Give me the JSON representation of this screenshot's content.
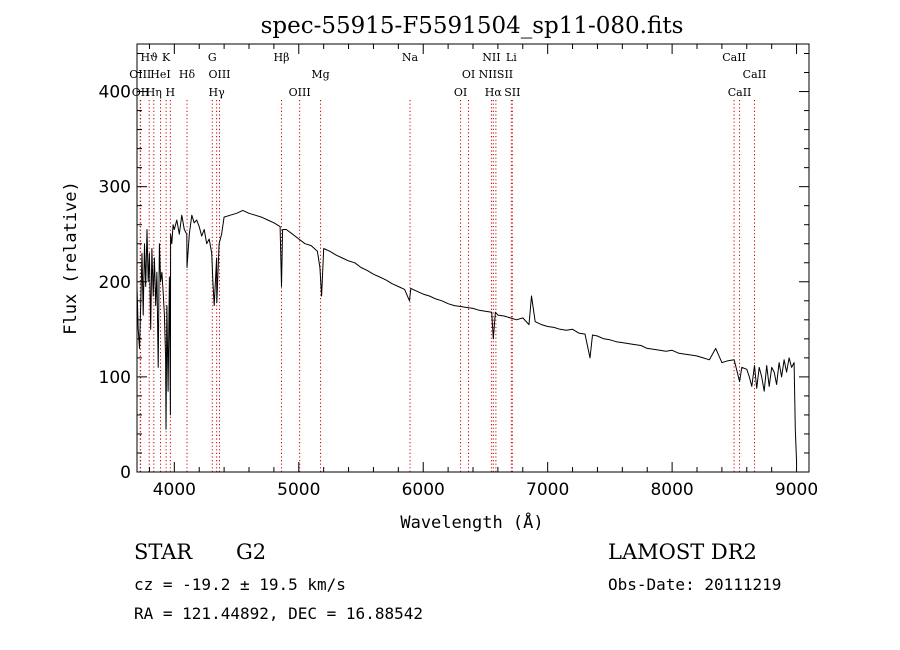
{
  "chart_data": {
    "type": "line",
    "title": "spec-55915-F5591504_sp11-080.fits",
    "xlabel": "Wavelength (Å)",
    "ylabel": "Flux (relative)",
    "xlim": [
      3700,
      9100
    ],
    "ylim": [
      0,
      450
    ],
    "xticks": [
      4000,
      5000,
      6000,
      7000,
      8000,
      9000
    ],
    "yticks": [
      0,
      100,
      200,
      300,
      400
    ],
    "grid": false,
    "legend": "none",
    "line_color": "#000000",
    "marker_color": "#cc0000",
    "series": [
      {
        "x": [
          3700,
          3710,
          3720,
          3730,
          3740,
          3750,
          3760,
          3770,
          3780,
          3790,
          3800,
          3810,
          3820,
          3830,
          3840,
          3850,
          3860,
          3870,
          3880,
          3890,
          3900,
          3910,
          3920,
          3930,
          3933,
          3940,
          3950,
          3960,
          3968,
          3970,
          3980,
          3990,
          4000,
          4020,
          4040,
          4060,
          4080,
          4100,
          4102,
          4120,
          4140,
          4160,
          4180,
          4200,
          4220,
          4240,
          4260,
          4280,
          4300,
          4310,
          4320,
          4340,
          4341,
          4360,
          4380,
          4400,
          4450,
          4500,
          4550,
          4600,
          4650,
          4700,
          4750,
          4800,
          4850,
          4861,
          4870,
          4900,
          4950,
          5000,
          5050,
          5100,
          5150,
          5170,
          5183,
          5200,
          5250,
          5300,
          5350,
          5400,
          5450,
          5500,
          5550,
          5600,
          5650,
          5700,
          5750,
          5800,
          5850,
          5890,
          5900,
          5950,
          6000,
          6050,
          6100,
          6150,
          6200,
          6250,
          6300,
          6350,
          6400,
          6450,
          6500,
          6550,
          6563,
          6580,
          6600,
          6650,
          6700,
          6750,
          6800,
          6850,
          6870,
          6900,
          6950,
          7000,
          7050,
          7100,
          7150,
          7200,
          7250,
          7300,
          7340,
          7360,
          7400,
          7450,
          7500,
          7550,
          7600,
          7650,
          7700,
          7750,
          7800,
          7850,
          7900,
          7950,
          8000,
          8050,
          8100,
          8150,
          8200,
          8250,
          8300,
          8350,
          8400,
          8450,
          8498,
          8510,
          8542,
          8560,
          8600,
          8620,
          8640,
          8662,
          8680,
          8700,
          8720,
          8740,
          8760,
          8780,
          8800,
          8820,
          8840,
          8860,
          8880,
          8900,
          8920,
          8940,
          8960,
          8980,
          8990,
          9000
        ],
        "y": [
          195,
          150,
          130,
          175,
          230,
          165,
          240,
          195,
          255,
          200,
          230,
          150,
          235,
          185,
          225,
          175,
          210,
          110,
          240,
          200,
          210,
          190,
          165,
          120,
          45,
          175,
          85,
          205,
          60,
          250,
          240,
          260,
          255,
          265,
          250,
          270,
          255,
          250,
          215,
          250,
          270,
          262,
          265,
          258,
          248,
          255,
          240,
          245,
          230,
          200,
          175,
          225,
          178,
          240,
          250,
          268,
          270,
          272,
          275,
          272,
          270,
          268,
          265,
          262,
          258,
          195,
          255,
          255,
          250,
          245,
          240,
          238,
          232,
          215,
          185,
          235,
          232,
          228,
          225,
          222,
          220,
          215,
          212,
          208,
          205,
          202,
          198,
          195,
          192,
          180,
          193,
          190,
          187,
          185,
          182,
          180,
          177,
          175,
          174,
          173,
          172,
          170,
          169,
          168,
          140,
          168,
          165,
          164,
          162,
          160,
          162,
          155,
          185,
          158,
          155,
          153,
          152,
          150,
          149,
          150,
          146,
          145,
          120,
          144,
          143,
          140,
          139,
          137,
          136,
          135,
          134,
          133,
          130,
          129,
          128,
          127,
          128,
          125,
          124,
          123,
          122,
          120,
          118,
          130,
          115,
          117,
          118,
          112,
          95,
          110,
          108,
          100,
          90,
          112,
          88,
          110,
          100,
          85,
          112,
          90,
          110,
          105,
          92,
          115,
          100,
          118,
          105,
          120,
          110,
          115,
          45,
          10
        ]
      }
    ],
    "line_markers": [
      {
        "label": "Hϑ",
        "x": 3798,
        "row": 1
      },
      {
        "label": "OIII",
        "x": 3726,
        "row": 2
      },
      {
        "label": "OII",
        "x": 3729,
        "row": 3
      },
      {
        "label": "Hη",
        "x": 3835,
        "row": 3
      },
      {
        "label": "HeI",
        "x": 3889,
        "row": 2
      },
      {
        "label": "K",
        "x": 3934,
        "row": 1
      },
      {
        "label": "H",
        "x": 3968,
        "row": 3
      },
      {
        "label": "Hδ",
        "x": 4102,
        "row": 2
      },
      {
        "label": "G",
        "x": 4305,
        "row": 1
      },
      {
        "label": "OIII",
        "x": 4363,
        "row": 2
      },
      {
        "label": "Hγ",
        "x": 4340,
        "row": 3
      },
      {
        "label": "Hβ",
        "x": 4861,
        "row": 1
      },
      {
        "label": "OIII",
        "x": 5007,
        "row": 3
      },
      {
        "label": "Mg",
        "x": 5175,
        "row": 2
      },
      {
        "label": "Na",
        "x": 5894,
        "row": 1
      },
      {
        "label": "OI",
        "x": 6300,
        "row": 3
      },
      {
        "label": "OI",
        "x": 6364,
        "row": 2
      },
      {
        "label": "NII",
        "x": 6548,
        "row": 1
      },
      {
        "label": "NIISII",
        "x": 6584,
        "row": 2
      },
      {
        "label": "Hα",
        "x": 6563,
        "row": 3
      },
      {
        "label": "SII",
        "x": 6716,
        "row": 3
      },
      {
        "label": "Li",
        "x": 6708,
        "row": 1
      },
      {
        "label": "CaII",
        "x": 8498,
        "row": 1
      },
      {
        "label": "CaII",
        "x": 8662,
        "row": 2
      },
      {
        "label": "CaII",
        "x": 8542,
        "row": 3
      }
    ]
  },
  "info": {
    "object_class": "STAR",
    "subclass": "G2",
    "release": "LAMOST DR2",
    "redshift": "cz = -19.2 ± 19.5 km/s",
    "obs_date": "Obs-Date: 20111219",
    "coords": "RA = 121.44892, DEC =  16.88542"
  }
}
